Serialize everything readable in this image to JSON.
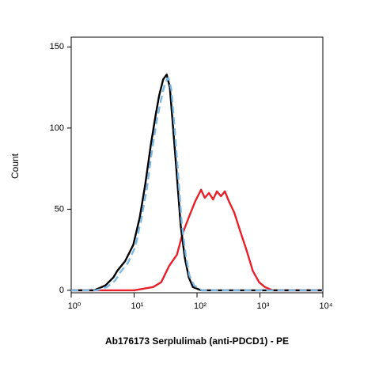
{
  "chart_data": {
    "type": "line",
    "x_label": "Ab176173 Serplulimab (anti-PDCD1) - PE",
    "y_label": "Count",
    "x_log": true,
    "xlim": [
      1,
      10000
    ],
    "xticks": [
      {
        "value": 1,
        "label": "10⁰"
      },
      {
        "value": 10,
        "label": "10¹"
      },
      {
        "value": 100,
        "label": "10²"
      },
      {
        "value": 1000,
        "label": "10³"
      },
      {
        "value": 10000,
        "label": "10⁴"
      }
    ],
    "ylim": [
      -1.5,
      156
    ],
    "yticks": [
      0,
      50,
      100,
      150
    ],
    "series": [
      {
        "color": "#e8202a",
        "dashed": false,
        "x": [
          1,
          5,
          10,
          20,
          27,
          36,
          48,
          59,
          74,
          94,
          116,
          133,
          155,
          180,
          207,
          240,
          277,
          320,
          390,
          500,
          610,
          770,
          970,
          1200,
          1600,
          10000
        ],
        "values": [
          0,
          0,
          0,
          2,
          5,
          15,
          22,
          35,
          45,
          55,
          62,
          57,
          60,
          56,
          61,
          58,
          61,
          55,
          48,
          35,
          25,
          12,
          5,
          2,
          0,
          0
        ]
      },
      {
        "color": "#000000",
        "dashed": false,
        "x": [
          1,
          2.3,
          3.5,
          4.7,
          5.4,
          7.2,
          9.7,
          12.3,
          15,
          18.5,
          22,
          25,
          29,
          33,
          37,
          41.7,
          48,
          55,
          64,
          74,
          86,
          116,
          10000
        ],
        "values": [
          0,
          0,
          3,
          8,
          12,
          18,
          28,
          45,
          65,
          90,
          108,
          120,
          130,
          133,
          125,
          100,
          70,
          40,
          20,
          8,
          2,
          0,
          0
        ]
      },
      {
        "color": "#7ab8e6",
        "dashed": true,
        "x": [
          1,
          2.5,
          3.7,
          5,
          6,
          8,
          10.5,
          13,
          16,
          19.5,
          23,
          27,
          31,
          35,
          39,
          44,
          50,
          57,
          66,
          76,
          90,
          120,
          10000
        ],
        "values": [
          0,
          0,
          2,
          6,
          11,
          17,
          27,
          44,
          63,
          88,
          105,
          118,
          128,
          131,
          124,
          100,
          72,
          42,
          22,
          9,
          3,
          0,
          0
        ]
      }
    ]
  }
}
